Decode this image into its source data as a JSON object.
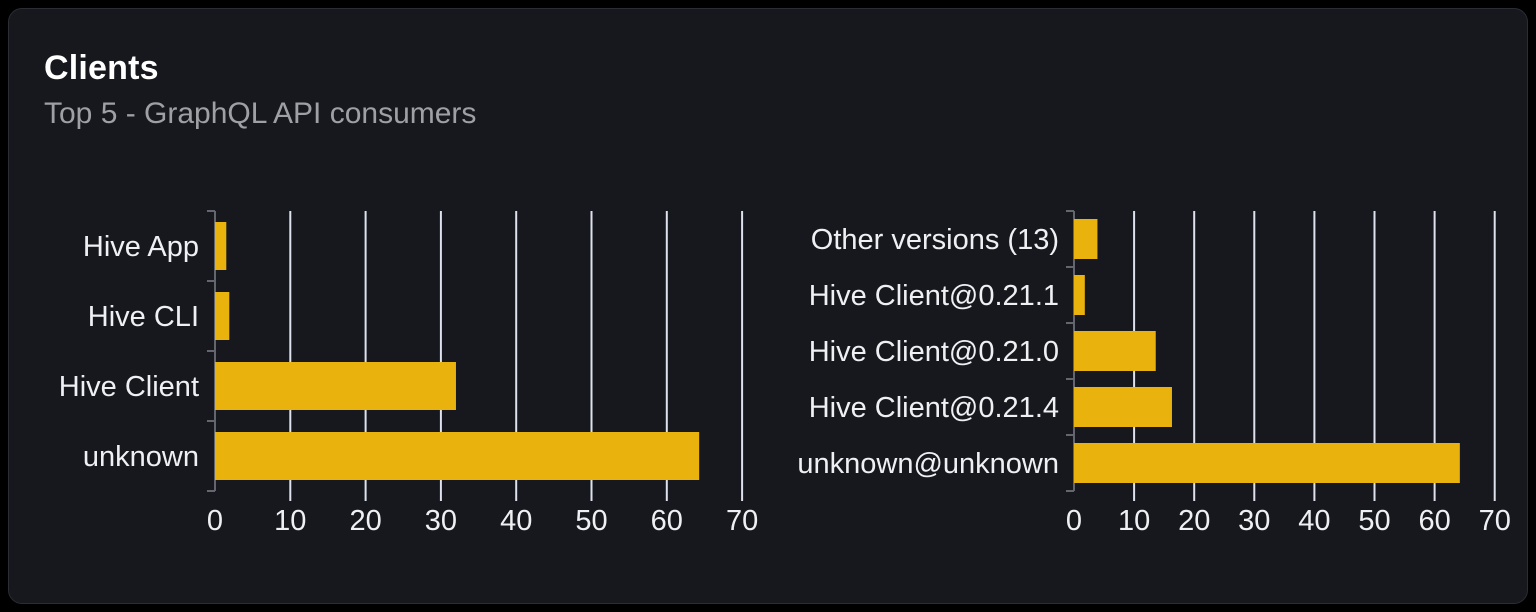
{
  "card": {
    "title": "Clients",
    "subtitle": "Top 5 - GraphQL API consumers"
  },
  "colors": {
    "page_bg": "#000000",
    "card_bg": "#16181d",
    "card_border": "#2a2d33",
    "title": "#ffffff",
    "subtitle": "#9ea0a6",
    "bar": "#eab20d",
    "gridline": "#dde2ee",
    "axis": "#63666e",
    "label_text": "#eef0f3"
  },
  "chart_data": [
    {
      "type": "bar",
      "orientation": "horizontal",
      "name": "clients-by-name",
      "categories": [
        "Hive App",
        "Hive CLI",
        "Hive Client",
        "unknown"
      ],
      "values": [
        1.5,
        1.9,
        32,
        64.3
      ],
      "xlim": [
        0,
        70
      ],
      "xticks": [
        0,
        10,
        20,
        30,
        40,
        50,
        60,
        70
      ],
      "grid": true,
      "legend": false,
      "title": "",
      "xlabel": "",
      "ylabel": ""
    },
    {
      "type": "bar",
      "orientation": "horizontal",
      "name": "clients-by-version",
      "categories": [
        "Other versions (13)",
        "Hive Client@0.21.1",
        "Hive Client@0.21.0",
        "Hive Client@0.21.4",
        "unknown@unknown"
      ],
      "values": [
        3.9,
        1.8,
        13.6,
        16.3,
        64.2
      ],
      "xlim": [
        0,
        70
      ],
      "xticks": [
        0,
        10,
        20,
        30,
        40,
        50,
        60,
        70
      ],
      "grid": true,
      "legend": false,
      "title": "",
      "xlabel": "",
      "ylabel": ""
    }
  ]
}
